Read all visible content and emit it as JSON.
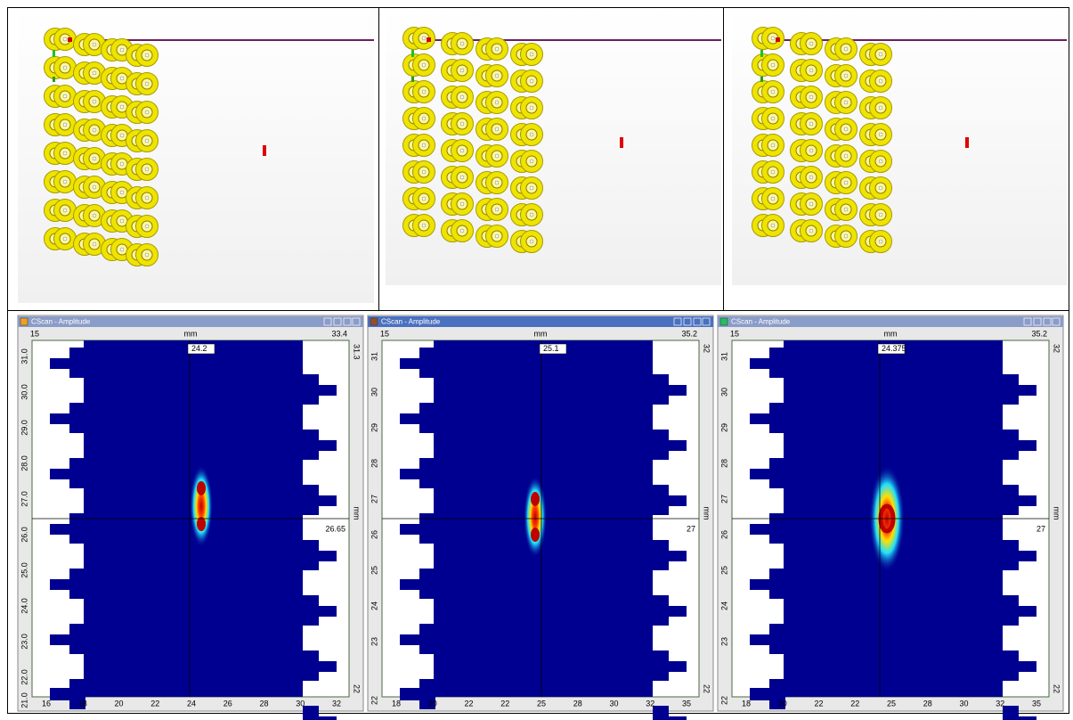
{
  "cscans": [
    {
      "title": "CScan - Amplitude",
      "x_start": "15",
      "x_unit": "mm",
      "x_end": "33.4",
      "cursor_x": "24.2",
      "y_top": "31.3",
      "y_unit": "mm",
      "cursor_y": "26.65",
      "y_bottom": "22",
      "corner": "21.0",
      "left_ticks": [
        "31.0",
        "30.0",
        "29.0",
        "28.0",
        "27.0",
        "26.0",
        "25.0",
        "24.0",
        "23.0",
        "22.0"
      ],
      "bottom_ticks": [
        "16",
        "18",
        "20",
        "22",
        "24",
        "26",
        "28",
        "30",
        "32"
      ]
    },
    {
      "title": "CScan - Amplitude",
      "x_start": "15",
      "x_unit": "mm",
      "x_end": "35.2",
      "cursor_x": "25.1",
      "y_top": "32",
      "y_unit": "mm",
      "cursor_y": "27",
      "y_bottom": "22",
      "corner": "22",
      "left_ticks": [
        "31",
        "30",
        "29",
        "28",
        "27",
        "26",
        "25",
        "24",
        "23"
      ],
      "bottom_ticks": [
        "18",
        "20",
        "22",
        "22",
        "25",
        "28",
        "30",
        "32",
        "35"
      ]
    },
    {
      "title": "CScan - Amplitude",
      "x_start": "15",
      "x_unit": "mm",
      "x_end": "35.2",
      "cursor_x": "24.375",
      "y_top": "32",
      "y_unit": "mm",
      "cursor_y": "27",
      "y_bottom": "22",
      "corner": "22",
      "left_ticks": [
        "31",
        "30",
        "29",
        "28",
        "27",
        "26",
        "25",
        "24",
        "23"
      ],
      "bottom_ticks": [
        "18",
        "20",
        "22",
        "22",
        "25",
        "28",
        "30",
        "32",
        "35"
      ]
    }
  ]
}
